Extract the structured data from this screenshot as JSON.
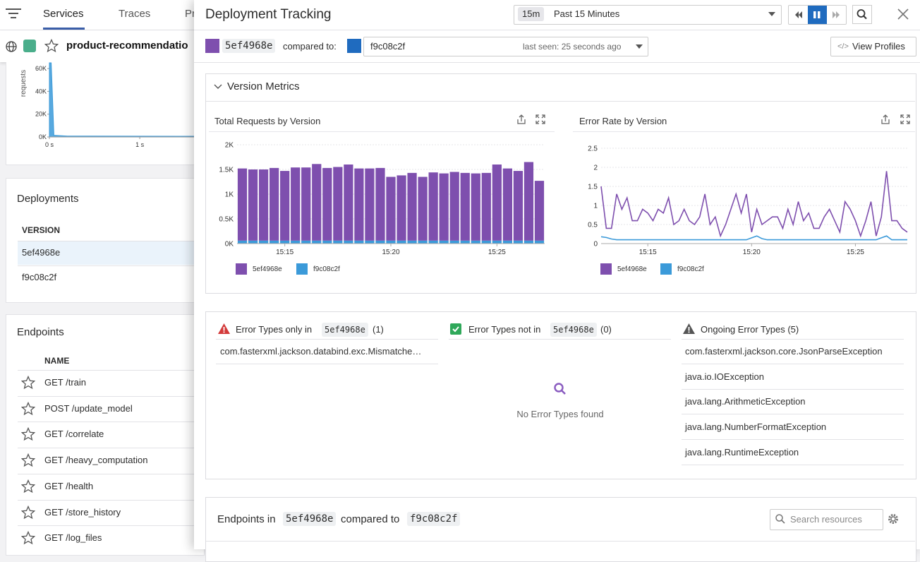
{
  "nav": {
    "tabs": [
      "Services",
      "Traces",
      "Pr"
    ]
  },
  "service": {
    "name": "product-recommendatio"
  },
  "background_chart": {
    "type": "area",
    "y_label": "requests",
    "x": [
      0,
      0.02,
      0.05,
      0.2,
      1.6
    ],
    "values": [
      65000,
      65000,
      1500,
      800,
      600
    ],
    "color": "#3b9ad9",
    "xlim": [
      0,
      1.6
    ],
    "ylim": [
      0,
      65000
    ],
    "xticks": [
      {
        "value": 0,
        "label": "0 s"
      },
      {
        "value": 1,
        "label": "1 s"
      }
    ],
    "yticks": [
      {
        "value": 0,
        "label": "0K"
      },
      {
        "value": 20000,
        "label": "20K"
      },
      {
        "value": 40000,
        "label": "40K"
      },
      {
        "value": 60000,
        "label": "60K"
      }
    ]
  },
  "deployments": {
    "title": "Deployments",
    "column": "VERSION",
    "rows": [
      "5ef4968e",
      "f9c08c2f"
    ]
  },
  "endpoints": {
    "title": "Endpoints",
    "column": "NAME",
    "rows": [
      "GET /train",
      "POST /update_model",
      "GET /correlate",
      "GET /heavy_computation",
      "GET /health",
      "GET /store_history",
      "GET /log_files"
    ]
  },
  "panel": {
    "title": "Deployment Tracking",
    "time_short": "15m",
    "time_range": "Past 15 Minutes",
    "version": "5ef4968e",
    "compared_label": "compared to:",
    "compared_version": "f9c08c2f",
    "last_seen": "last seen: 25 seconds ago",
    "view_profiles": "View Profiles",
    "metrics_title": "Version Metrics",
    "error_types": {
      "only_in": {
        "label": "Error Types only in",
        "version": "5ef4968e",
        "count": "(1)",
        "items": [
          "com.fasterxml.jackson.databind.exc.Mismatche…"
        ]
      },
      "not_in": {
        "label": "Error Types not in",
        "version": "5ef4968e",
        "count": "(0)",
        "empty": "No Error Types found"
      },
      "ongoing": {
        "label": "Ongoing Error Types (5)",
        "items": [
          "com.fasterxml.jackson.core.JsonParseException",
          "java.io.IOException",
          "java.lang.ArithmeticException",
          "java.lang.NumberFormatException",
          "java.lang.RuntimeException"
        ]
      }
    },
    "endpoints_compare": {
      "prefix": "Endpoints in",
      "version": "5ef4968e",
      "middle": "compared to",
      "other": "f9c08c2f",
      "search_placeholder": "Search resources"
    }
  },
  "chart_data": [
    {
      "type": "bar",
      "stacked": true,
      "title": "Total Requests by Version",
      "categories": [
        null,
        null,
        null,
        null,
        "15:15",
        null,
        null,
        null,
        null,
        null,
        null,
        null,
        null,
        null,
        "15:20",
        null,
        null,
        null,
        null,
        null,
        null,
        null,
        null,
        null,
        "15:25",
        null,
        null,
        null,
        null
      ],
      "series": [
        {
          "name": "5ef4968e",
          "color": "#7e4fae",
          "values": [
            1460,
            1440,
            1440,
            1470,
            1410,
            1480,
            1480,
            1550,
            1470,
            1490,
            1540,
            1460,
            1460,
            1470,
            1290,
            1320,
            1370,
            1290,
            1380,
            1360,
            1390,
            1370,
            1360,
            1370,
            1540,
            1460,
            1410,
            1590,
            1210
          ]
        },
        {
          "name": "f9c08c2f",
          "color": "#3b9ad9",
          "values": [
            60,
            60,
            60,
            60,
            60,
            60,
            60,
            60,
            60,
            60,
            60,
            60,
            60,
            60,
            60,
            60,
            60,
            60,
            60,
            60,
            60,
            60,
            60,
            60,
            60,
            60,
            60,
            60,
            60
          ]
        }
      ],
      "ylim": [
        0,
        2000
      ],
      "yticks": [
        {
          "value": 0,
          "label": "0K"
        },
        {
          "value": 500,
          "label": "0.5K"
        },
        {
          "value": 1000,
          "label": "1K"
        },
        {
          "value": 1500,
          "label": "1.5K"
        },
        {
          "value": 2000,
          "label": "2K"
        }
      ],
      "grid": true
    },
    {
      "type": "line",
      "title": "Error Rate by Version",
      "categories": [
        null,
        null,
        null,
        null,
        null,
        null,
        null,
        null,
        null,
        "15:15",
        null,
        null,
        null,
        null,
        null,
        null,
        null,
        null,
        null,
        null,
        null,
        null,
        null,
        null,
        null,
        null,
        null,
        null,
        null,
        "15:20",
        null,
        null,
        null,
        null,
        null,
        null,
        null,
        null,
        null,
        null,
        null,
        null,
        null,
        null,
        null,
        null,
        null,
        null,
        null,
        "15:25",
        null,
        null,
        null,
        null,
        null,
        null,
        null,
        null,
        null,
        null
      ],
      "series": [
        {
          "name": "5ef4968e",
          "color": "#7e4fae",
          "values": [
            1.5,
            0.4,
            0.4,
            1.3,
            0.9,
            1.2,
            0.6,
            0.6,
            0.9,
            0.8,
            0.6,
            0.9,
            0.8,
            1.2,
            0.5,
            0.6,
            0.9,
            0.6,
            0.5,
            0.7,
            1.3,
            0.5,
            0.7,
            0.2,
            0.5,
            0.9,
            1.3,
            0.8,
            1.3,
            0.3,
            0.9,
            0.5,
            0.6,
            0.7,
            0.7,
            0.4,
            0.9,
            0.5,
            1.1,
            0.6,
            0.8,
            0.4,
            0.4,
            0.7,
            0.9,
            0.6,
            0.3,
            1.1,
            0.9,
            0.6,
            0.2,
            0.6,
            1.1,
            0.2,
            0.7,
            1.9,
            0.6,
            0.6,
            0.4,
            0.3
          ]
        },
        {
          "name": "f9c08c2f",
          "color": "#3b9ad9",
          "values": [
            0.18,
            0.16,
            0.12,
            0.1,
            0.1,
            0.1,
            0.1,
            0.1,
            0.1,
            0.1,
            0.1,
            0.1,
            0.1,
            0.1,
            0.1,
            0.1,
            0.1,
            0.1,
            0.1,
            0.1,
            0.1,
            0.1,
            0.1,
            0.1,
            0.1,
            0.1,
            0.1,
            0.1,
            0.1,
            0.15,
            0.2,
            0.13,
            0.1,
            0.1,
            0.1,
            0.1,
            0.1,
            0.1,
            0.1,
            0.1,
            0.1,
            0.1,
            0.1,
            0.1,
            0.1,
            0.1,
            0.1,
            0.1,
            0.1,
            0.1,
            0.1,
            0.1,
            0.1,
            0.1,
            0.15,
            0.2,
            0.1,
            0.1,
            0.1,
            0.1
          ]
        }
      ],
      "ylim": [
        0,
        2.5
      ],
      "yticks": [
        0,
        0.5,
        1,
        1.5,
        2,
        2.5
      ],
      "grid": true
    }
  ]
}
